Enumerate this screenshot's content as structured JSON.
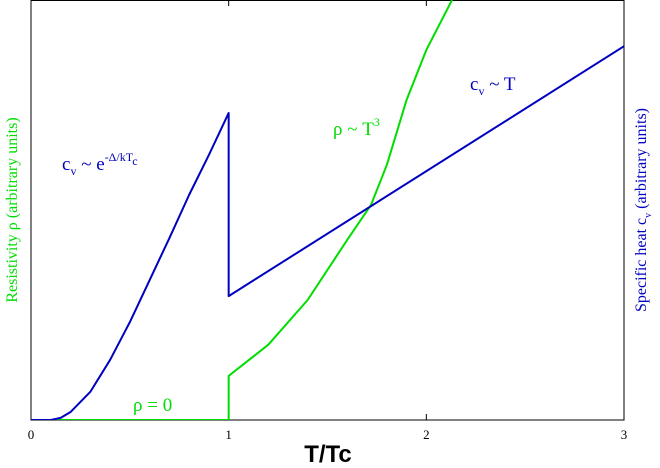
{
  "chart_data": {
    "type": "line",
    "xlabel": "T/Tc",
    "xlim": [
      0,
      3
    ],
    "xticks": [
      0,
      1,
      2,
      3
    ],
    "ylim": [
      0,
      100
    ],
    "y2lim": [
      0,
      100
    ],
    "ylabel": {
      "color": "#00dd00",
      "parts": [
        {
          "text": "Resistivity ρ (arbitrary units)"
        }
      ]
    },
    "y2label": {
      "color": "#0000c0",
      "parts": [
        {
          "text": "Specific heat c"
        },
        {
          "text": "v",
          "shift": "sub"
        },
        {
          "text": " (arbitrary units)"
        }
      ]
    },
    "series": [
      {
        "color": "#0000c0",
        "axis": "y2",
        "x": [
          0,
          0.1,
          0.15,
          0.2,
          0.3,
          0.4,
          0.5,
          0.6,
          0.7,
          0.8,
          0.9,
          1.0,
          1.0,
          3.0
        ],
        "values": [
          0,
          0,
          0.5,
          1.9,
          6.7,
          14.3,
          23.3,
          33.3,
          43.3,
          53.6,
          63.1,
          73.1,
          29.5,
          89
        ]
      },
      {
        "color": "#00dd00",
        "x": [
          0,
          1.0,
          1.0,
          1.2,
          1.4,
          1.6,
          1.72,
          1.8,
          1.9,
          2.0,
          2.13
        ],
        "values": [
          0,
          0,
          10.5,
          17.9,
          28.6,
          42.9,
          51.2,
          60.7,
          76.2,
          88.1,
          100
        ]
      }
    ],
    "annotations": [
      {
        "color": "#0000c0",
        "parts": [
          {
            "text": "c"
          },
          {
            "text": "v",
            "shift": "sub"
          },
          {
            "text": " ~ e"
          },
          {
            "text": "-Δ/kT",
            "shift": "sup"
          },
          {
            "text": "c",
            "shift": "supsub"
          }
        ]
      },
      {
        "color": "#00dd00",
        "parts": [
          {
            "text": "ρ ~ T"
          },
          {
            "text": "3",
            "shift": "sup"
          }
        ]
      },
      {
        "color": "#0000c0",
        "parts": [
          {
            "text": "c"
          },
          {
            "text": "v",
            "shift": "sub"
          },
          {
            "text": " ~ T"
          }
        ]
      },
      {
        "color": "#00dd00",
        "parts": [
          {
            "text": "ρ = 0"
          }
        ]
      }
    ]
  }
}
